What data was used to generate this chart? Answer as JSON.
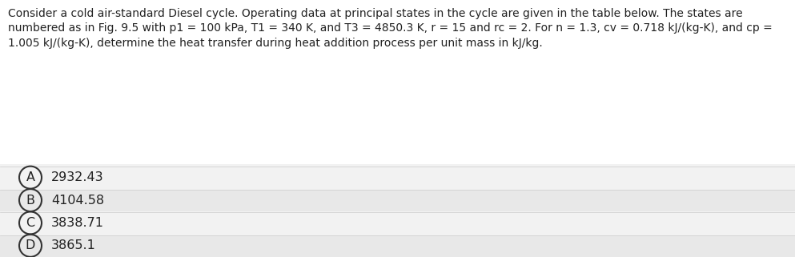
{
  "question_text_lines": [
    "Consider a cold air-standard Diesel cycle. Operating data at principal states in the cycle are given in the table below. The states are",
    "numbered as in Fig. 9.5 with p1 = 100 kPa, T1 = 340 K, and T3 = 4850.3 K, r = 15 and rc = 2. For n = 1.3, cv = 0.718 kJ/(kg-K), and cp =",
    "1.005 kJ/(kg-K), determine the heat transfer during heat addition process per unit mass in kJ/kg."
  ],
  "options": [
    {
      "label": "A",
      "text": "2932.43"
    },
    {
      "label": "B",
      "text": "4104.58"
    },
    {
      "label": "C",
      "text": "3838.71"
    },
    {
      "label": "D",
      "text": "3865.1"
    }
  ],
  "bg_color": "#f2f2f2",
  "question_bg": "#ffffff",
  "option_bg_light": "#f2f2f2",
  "option_bg_dark": "#e8e8e8",
  "text_color": "#222222",
  "circle_edge_color": "#333333",
  "font_size_question": 10.0,
  "font_size_option": 11.5,
  "fig_width": 9.93,
  "fig_height": 3.21,
  "dpi": 100
}
